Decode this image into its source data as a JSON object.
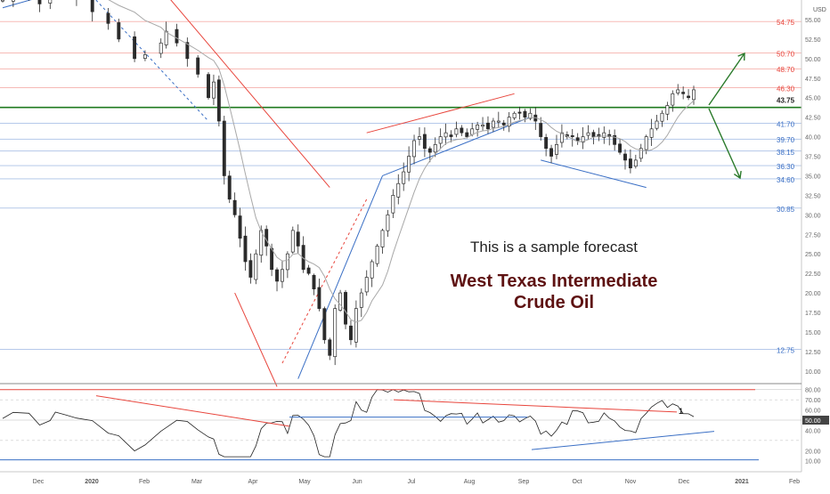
{
  "chart_data": {
    "type": "candlestick",
    "currency": "USD",
    "instrument_title": [
      "West Texas Intermediate",
      "Crude Oil"
    ],
    "caption": "This is a sample forecast",
    "x_ticks": [
      "Dec",
      "2020",
      "Feb",
      "Mar",
      "Apr",
      "May",
      "Jun",
      "Jul",
      "Aug",
      "Sep",
      "Oct",
      "Nov",
      "Dec",
      "2021",
      "Feb"
    ],
    "y_ticks": [
      "55.00",
      "52.50",
      "50.00",
      "47.50",
      "45.00",
      "42.50",
      "40.00",
      "37.50",
      "35.00",
      "32.50",
      "30.00",
      "27.50",
      "25.00",
      "22.50",
      "20.00",
      "17.50",
      "15.00",
      "12.50",
      "10.00"
    ],
    "ylim": [
      8.5,
      57.5
    ],
    "price_levels": [
      {
        "value": 54.75,
        "label": "54.75",
        "kind": "resistance"
      },
      {
        "value": 50.7,
        "label": "50.70",
        "kind": "resistance"
      },
      {
        "value": 48.7,
        "label": "48.70",
        "kind": "resistance"
      },
      {
        "value": 46.3,
        "label": "46.30",
        "kind": "resistance"
      },
      {
        "value": 43.75,
        "label": "43.75",
        "kind": "pivot"
      },
      {
        "value": 41.7,
        "label": "41.70",
        "kind": "support"
      },
      {
        "value": 39.7,
        "label": "39.70",
        "kind": "support"
      },
      {
        "value": 38.15,
        "label": "38.15",
        "kind": "support"
      },
      {
        "value": 36.3,
        "label": "36.30",
        "kind": "support"
      },
      {
        "value": 34.6,
        "label": "34.60",
        "kind": "support"
      },
      {
        "value": 30.85,
        "label": "30.85",
        "kind": "support"
      },
      {
        "value": 12.75,
        "label": "12.75",
        "kind": "support"
      }
    ],
    "price_path": [
      [
        0,
        57.5
      ],
      [
        2,
        58.5
      ],
      [
        5,
        58.5
      ],
      [
        7,
        57
      ],
      [
        9,
        59
      ],
      [
        10,
        59
      ],
      [
        12,
        58.5
      ],
      [
        14,
        58
      ],
      [
        17,
        56
      ],
      [
        20,
        54.5
      ],
      [
        22,
        52.5
      ],
      [
        25,
        50
      ],
      [
        27,
        50.5
      ],
      [
        30,
        52
      ],
      [
        31,
        53.5
      ],
      [
        33,
        52
      ],
      [
        35,
        50
      ],
      [
        37,
        48
      ],
      [
        39,
        45
      ],
      [
        40,
        47
      ],
      [
        41,
        42
      ],
      [
        42,
        35
      ],
      [
        43,
        32
      ],
      [
        44,
        30
      ],
      [
        45,
        27
      ],
      [
        46,
        24
      ],
      [
        47,
        22
      ],
      [
        48,
        25
      ],
      [
        49,
        28
      ],
      [
        50,
        26
      ],
      [
        51,
        23
      ],
      [
        52,
        21.5
      ],
      [
        53,
        23
      ],
      [
        54,
        25
      ],
      [
        55,
        28
      ],
      [
        56,
        26
      ],
      [
        57,
        23
      ],
      [
        58,
        22.5
      ],
      [
        59,
        20.5
      ],
      [
        60,
        18
      ],
      [
        61,
        14
      ],
      [
        62,
        12
      ],
      [
        63,
        18
      ],
      [
        64,
        20
      ],
      [
        65,
        16
      ],
      [
        66,
        14
      ],
      [
        67,
        18
      ],
      [
        68,
        20
      ],
      [
        69,
        22
      ],
      [
        70,
        24
      ],
      [
        71,
        26
      ],
      [
        72,
        28
      ],
      [
        73,
        30
      ],
      [
        74,
        32.5
      ],
      [
        75,
        34
      ],
      [
        76,
        35.5
      ],
      [
        77,
        37.5
      ],
      [
        78,
        39.5
      ],
      [
        79,
        40
      ],
      [
        80,
        38.5
      ],
      [
        81,
        38
      ],
      [
        82,
        39
      ],
      [
        83,
        40
      ],
      [
        84,
        40.5
      ],
      [
        85,
        40
      ],
      [
        86,
        41
      ],
      [
        87,
        40.5
      ],
      [
        88,
        40
      ],
      [
        89,
        41
      ],
      [
        90,
        41.5
      ],
      [
        91,
        41.5
      ],
      [
        92,
        41
      ],
      [
        93,
        42
      ],
      [
        94,
        42
      ],
      [
        95,
        41.5
      ],
      [
        96,
        42.5
      ],
      [
        97,
        43
      ],
      [
        98,
        43
      ],
      [
        99,
        42.5
      ],
      [
        100,
        43
      ],
      [
        101,
        42
      ],
      [
        102,
        40
      ],
      [
        103,
        38.5
      ],
      [
        104,
        37.5
      ],
      [
        105,
        39
      ],
      [
        106,
        40.5
      ],
      [
        107,
        40
      ],
      [
        108,
        40
      ],
      [
        109,
        39.5
      ],
      [
        110,
        40
      ],
      [
        111,
        40.5
      ],
      [
        112,
        40
      ],
      [
        113,
        40
      ],
      [
        114,
        40.5
      ],
      [
        115,
        40
      ],
      [
        116,
        39
      ],
      [
        117,
        38
      ],
      [
        118,
        37
      ],
      [
        119,
        36
      ],
      [
        120,
        37
      ],
      [
        121,
        38.5
      ],
      [
        122,
        40
      ],
      [
        123,
        41
      ],
      [
        124,
        42
      ],
      [
        125,
        43
      ],
      [
        126,
        44
      ],
      [
        127,
        45.5
      ],
      [
        128,
        46
      ],
      [
        129,
        45.5
      ],
      [
        130,
        45
      ],
      [
        131,
        46
      ]
    ],
    "oscillator": {
      "ylim": [
        8,
        85
      ],
      "y_ticks": [
        "80.00",
        "70.00",
        "60.00",
        "50.00",
        "40.00",
        "20.00",
        "10.00"
      ],
      "badges": [
        {
          "label": "50.00",
          "value": 50
        }
      ]
    }
  },
  "colors": {
    "resistance": "#e8453c",
    "support": "#3a6fc5",
    "pivot": "#1f7a1f",
    "forecast_text": "#5e1212",
    "candle_body": "#2b2b2b",
    "moving_average": "#a8a8a8",
    "arrow": "#2a7a2a"
  }
}
